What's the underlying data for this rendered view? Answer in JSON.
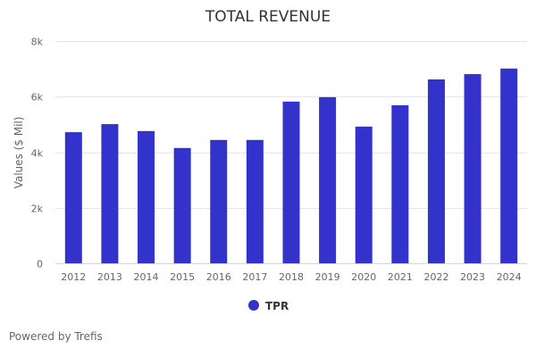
{
  "chart_data": {
    "type": "bar",
    "title": "TOTAL REVENUE",
    "xlabel": "",
    "ylabel": "Values ($ Mil)",
    "categories": [
      "2012",
      "2013",
      "2014",
      "2015",
      "2016",
      "2017",
      "2018",
      "2019",
      "2020",
      "2021",
      "2022",
      "2023",
      "2024"
    ],
    "series": [
      {
        "name": "TPR",
        "color": "#3333cc",
        "values": [
          4720,
          5010,
          4760,
          4150,
          4440,
          4440,
          5820,
          5980,
          4920,
          5690,
          6620,
          6810,
          7010
        ]
      }
    ],
    "ylim": [
      0,
      8000
    ],
    "yticks": [
      0,
      2000,
      4000,
      6000,
      8000
    ],
    "ytick_labels": [
      "0",
      "2k",
      "4k",
      "6k",
      "8k"
    ],
    "grid": true,
    "legend_position": "bottom-center"
  },
  "footer": {
    "credit": "Powered by Trefis"
  }
}
